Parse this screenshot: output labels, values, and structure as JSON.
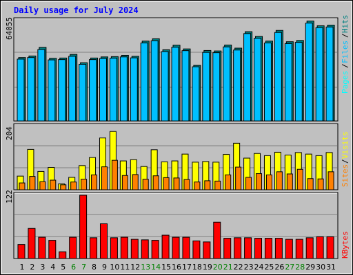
{
  "chart_data": [
    {
      "type": "bar",
      "title": "Daily usage for July 2024",
      "panel": "top",
      "ymax_label": "64055",
      "ylim": [
        0,
        64055
      ],
      "categories": [
        "1",
        "2",
        "3",
        "4",
        "5",
        "6",
        "7",
        "8",
        "9",
        "10",
        "11",
        "12",
        "13",
        "14",
        "15",
        "16",
        "17",
        "18",
        "19",
        "20",
        "21",
        "22",
        "23",
        "24",
        "25",
        "26",
        "27",
        "28",
        "29",
        "30",
        "31"
      ],
      "weekend_days": [
        "6",
        "7",
        "13",
        "14",
        "20",
        "21",
        "27",
        "28"
      ],
      "colors": {
        "hits": "#008080",
        "files": "#00c0ff",
        "pages": "#00ffff"
      },
      "legend": {
        "hits": "Hits",
        "files": "Files",
        "pages": "Pages"
      },
      "series": [
        {
          "name": "Hits",
          "values": [
            40500,
            41500,
            47000,
            40000,
            40200,
            42500,
            37200,
            40200,
            40900,
            41100,
            41900,
            41300,
            51000,
            52500,
            45500,
            48400,
            46000,
            35500,
            45000,
            44700,
            48500,
            46500,
            57000,
            54000,
            51000,
            57800,
            50600,
            51400,
            63800,
            60800,
            61200
          ]
        },
        {
          "name": "Files",
          "values": [
            39500,
            40500,
            45600,
            39000,
            39200,
            41300,
            36200,
            39200,
            39900,
            40100,
            40900,
            40300,
            49800,
            51200,
            44300,
            47100,
            44900,
            34600,
            43800,
            43600,
            47300,
            45300,
            55800,
            52800,
            49800,
            56500,
            49400,
            50200,
            62500,
            59600,
            60000
          ]
        }
      ]
    },
    {
      "type": "bar",
      "panel": "middle",
      "ymax_label": "204",
      "ylim": [
        0,
        204
      ],
      "colors": {
        "visits": "#ffff00",
        "sites": "#ff8000"
      },
      "legend": {
        "sites": "Sites",
        "visits": "Visits"
      },
      "series": [
        {
          "name": "Visits",
          "values": [
            44,
            130,
            59,
            72,
            19,
            40,
            78,
            104,
            167,
            188,
            93,
            97,
            75,
            129,
            90,
            93,
            115,
            89,
            91,
            89,
            114,
            150,
            102,
            117,
            110,
            121,
            112,
            120,
            115,
            110,
            120
          ]
        },
        {
          "name": "Sites",
          "values": [
            22,
            43,
            26,
            31,
            16,
            25,
            34,
            48,
            74,
            95,
            46,
            49,
            34,
            45,
            39,
            38,
            33,
            25,
            29,
            28,
            48,
            73,
            40,
            52,
            48,
            58,
            51,
            66,
            36,
            35,
            58
          ]
        }
      ]
    },
    {
      "type": "bar",
      "panel": "bottom",
      "ymax_label": "122",
      "ylim": [
        0,
        122
      ],
      "colors": {
        "kbytes": "#ff0000"
      },
      "legend": {
        "kbytes": "KBytes"
      },
      "series": [
        {
          "name": "KBytes",
          "values": [
            27,
            58,
            41,
            35,
            13,
            41,
            122,
            40,
            67,
            40,
            41,
            37,
            36,
            35,
            45,
            41,
            41,
            34,
            32,
            70,
            39,
            40,
            40,
            39,
            39,
            39,
            37,
            37,
            40,
            42,
            42
          ]
        }
      ]
    }
  ]
}
